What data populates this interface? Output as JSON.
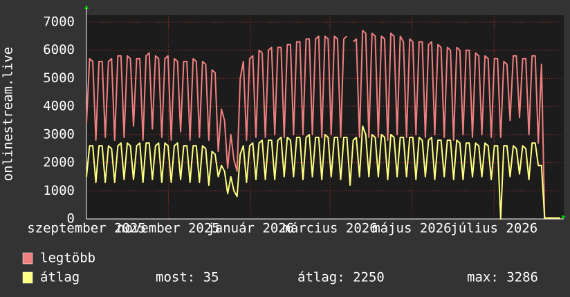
{
  "chart_data": {
    "type": "line",
    "ylabel": "onlinestream.live",
    "ylim": [
      0,
      7000
    ],
    "yticks": [
      0,
      1000,
      2000,
      3000,
      4000,
      5000,
      6000,
      7000
    ],
    "xlim": [
      0,
      151
    ],
    "xticks": [
      {
        "value": 0,
        "label": "szeptember 2025"
      },
      {
        "value": 26.1,
        "label": "november 2025"
      },
      {
        "value": 52.3,
        "label": "január 2026"
      },
      {
        "value": 77.6,
        "label": "március 2026"
      },
      {
        "value": 103.7,
        "label": "május 2026"
      },
      {
        "value": 129.9,
        "label": "július 2026"
      }
    ],
    "grid": true,
    "series": [
      {
        "name": "legtöbb",
        "color": "#f08080",
        "values": [
          3400,
          5700,
          5600,
          2800,
          5600,
          5600,
          2900,
          5600,
          5700,
          2800,
          5800,
          5800,
          2900,
          5800,
          5700,
          3300,
          5700,
          5700,
          2800,
          5800,
          5900,
          3200,
          5800,
          5700,
          2900,
          5700,
          5800,
          2800,
          5700,
          5600,
          3100,
          5600,
          5600,
          2800,
          5700,
          5600,
          2900,
          5600,
          5500,
          2800,
          5300,
          5200,
          2400,
          3900,
          3500,
          1800,
          3000,
          2100,
          1700,
          5000,
          5600,
          2800,
          5700,
          5800,
          2900,
          6000,
          5900,
          2900,
          6000,
          6100,
          3000,
          6100,
          6100,
          2900,
          6200,
          6200,
          3000,
          6300,
          6300,
          3000,
          6400,
          6400,
          3000,
          6400,
          6500,
          2900,
          6500,
          6400,
          3000,
          6500,
          6400,
          2900,
          6400,
          6500,
          null,
          6300,
          6400,
          2900,
          6700,
          6600,
          2900,
          6600,
          6500,
          2900,
          6500,
          6400,
          2800,
          6600,
          6500,
          3000,
          6500,
          6300,
          2900,
          6400,
          6300,
          3000,
          6300,
          6300,
          2900,
          6200,
          6300,
          3000,
          6200,
          6100,
          2900,
          6100,
          6000,
          2800,
          6100,
          6000,
          3000,
          6000,
          6000,
          2900,
          5900,
          5800,
          3000,
          5800,
          5700,
          2900,
          5700,
          5700,
          2900,
          5600,
          5500,
          3500,
          5800,
          5800,
          3600,
          5700,
          5700,
          3000,
          5800,
          5800,
          2700,
          5500,
          35,
          35,
          35,
          35,
          35,
          35
        ]
      },
      {
        "name": "átlag",
        "color": "#ffff80",
        "values": [
          1500,
          2600,
          2600,
          1300,
          2600,
          2600,
          1300,
          2600,
          2500,
          1300,
          2600,
          2700,
          1400,
          2700,
          2600,
          1400,
          2600,
          2700,
          1300,
          2700,
          2700,
          1400,
          2600,
          2700,
          1300,
          2700,
          2600,
          1300,
          2600,
          2700,
          1400,
          2600,
          2600,
          1300,
          2600,
          2600,
          1300,
          2600,
          2500,
          1200,
          2400,
          2300,
          1500,
          1900,
          1700,
          900,
          1500,
          1000,
          800,
          2300,
          2600,
          1300,
          2600,
          2700,
          1400,
          2700,
          2800,
          1400,
          2800,
          2800,
          1400,
          2800,
          2900,
          1500,
          2900,
          2800,
          1500,
          2900,
          2900,
          1400,
          2900,
          3000,
          1500,
          2900,
          2900,
          1400,
          3000,
          2900,
          1500,
          2900,
          2900,
          1400,
          2900,
          2900,
          1200,
          2800,
          2900,
          1500,
          3300,
          3000,
          1500,
          3000,
          2900,
          1500,
          3000,
          2900,
          1400,
          3000,
          2900,
          1500,
          2900,
          2900,
          1500,
          2900,
          2900,
          1400,
          2900,
          2800,
          1500,
          2800,
          2900,
          1400,
          2800,
          2800,
          1500,
          2800,
          2800,
          1400,
          2800,
          2700,
          1400,
          2700,
          2700,
          1500,
          2700,
          2600,
          1500,
          2700,
          2600,
          1400,
          2600,
          2600,
          0,
          2600,
          2600,
          1500,
          2600,
          2500,
          1600,
          2600,
          2500,
          1400,
          2700,
          2700,
          1900,
          1900,
          35,
          35,
          35,
          35,
          35,
          35
        ]
      }
    ],
    "stats": [
      "most: 35",
      "átlag: 2250",
      "max: 3286"
    ]
  }
}
